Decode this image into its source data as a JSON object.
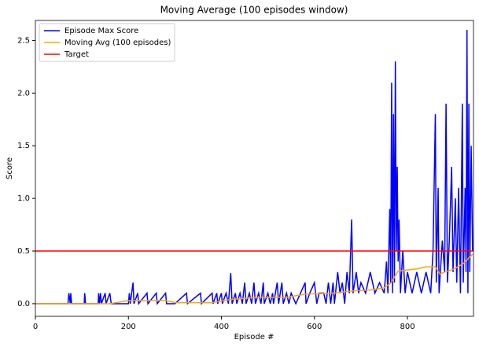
{
  "chart_data": {
    "type": "line",
    "title": "Moving Average (100 episodes window)",
    "x_label": "Episode #",
    "y_label": "Score",
    "xlim": [
      0,
      942
    ],
    "ylim": [
      -0.12,
      2.69
    ],
    "xticks": [
      0,
      200,
      400,
      600,
      800
    ],
    "yticks": [
      {
        "value": 0,
        "label": "0.0"
      },
      {
        "value": 0.5,
        "label": "0.5"
      },
      {
        "value": 1,
        "label": "1.0"
      },
      {
        "value": 1.5,
        "label": "1.5"
      },
      {
        "value": 2,
        "label": "2.0"
      },
      {
        "value": 2.5,
        "label": "2.5"
      }
    ],
    "legend": "upper left",
    "series": [
      {
        "name": "Episode Max Score",
        "color": "#0000ff",
        "x": [
          0,
          70,
          72,
          75,
          76,
          78,
          105,
          106,
          108,
          135,
          136,
          138,
          140,
          142,
          150,
          152,
          160,
          163,
          200,
          202,
          204,
          210,
          212,
          220,
          222,
          240,
          242,
          260,
          262,
          280,
          282,
          300,
          325,
          327,
          355,
          357,
          380,
          382,
          390,
          392,
          400,
          402,
          410,
          415,
          420,
          423,
          430,
          433,
          440,
          445,
          450,
          453,
          460,
          465,
          470,
          473,
          480,
          485,
          490,
          492,
          500,
          505,
          510,
          512,
          520,
          523,
          530,
          533,
          540,
          545,
          550,
          560,
          570,
          580,
          582,
          590,
          600,
          605,
          610,
          620,
          625,
          630,
          635,
          640,
          643,
          650,
          655,
          660,
          665,
          670,
          675,
          680,
          683,
          690,
          695,
          700,
          710,
          720,
          730,
          740,
          750,
          755,
          758,
          762,
          764,
          766,
          768,
          770,
          772,
          774,
          776,
          778,
          780,
          782,
          785,
          790,
          795,
          800,
          810,
          820,
          830,
          840,
          850,
          855,
          860,
          862,
          866,
          868,
          875,
          880,
          883,
          886,
          890,
          895,
          898,
          903,
          906,
          910,
          914,
          918,
          920,
          924,
          926,
          928,
          930,
          932,
          934,
          937,
          940
        ],
        "values": [
          0,
          0,
          0.1,
          0,
          0.1,
          0,
          0,
          0.1,
          0,
          0,
          0.1,
          0,
          0.1,
          0,
          0.1,
          0,
          0.1,
          0,
          0,
          0.1,
          0,
          0.2,
          0,
          0.1,
          0,
          0.1,
          0,
          0.1,
          0,
          0.1,
          0,
          0,
          0.1,
          0,
          0.1,
          0,
          0.1,
          0,
          0.1,
          0,
          0.1,
          0,
          0.1,
          0,
          0.29,
          0,
          0.1,
          0,
          0.1,
          0,
          0.2,
          0,
          0.1,
          0,
          0.2,
          0,
          0.1,
          0,
          0.2,
          0,
          0.1,
          0,
          0.1,
          0,
          0.2,
          0,
          0.2,
          0,
          0.1,
          0,
          0.1,
          0,
          0.1,
          0.2,
          0,
          0.1,
          0.2,
          0,
          0.1,
          0.1,
          0,
          0.2,
          0,
          0.2,
          0,
          0.3,
          0.1,
          0.2,
          0,
          0.3,
          0.1,
          0.8,
          0.1,
          0.3,
          0.1,
          0.2,
          0.1,
          0.3,
          0.1,
          0.2,
          0.1,
          0.4,
          0.1,
          0.9,
          0.2,
          2.1,
          0.1,
          1.8,
          0.2,
          2.3,
          0.5,
          1.3,
          0.4,
          0.8,
          0.1,
          0.5,
          0.1,
          0.3,
          0.1,
          0.3,
          0.1,
          0.3,
          0.1,
          0.5,
          1.8,
          0.2,
          1.1,
          0.1,
          0.6,
          0.3,
          1.9,
          0.2,
          0.6,
          1.3,
          0.3,
          1.0,
          0.2,
          1.1,
          0.1,
          1.9,
          0.2,
          1.1,
          0.3,
          2.6,
          0.1,
          1.9,
          0.3,
          1.5,
          0.5
        ]
      },
      {
        "name": "Moving Avg (100 episodes)",
        "color": "#ffa500",
        "x": [
          0,
          160,
          200,
          280,
          300,
          380,
          420,
          480,
          540,
          580,
          640,
          680,
          720,
          750,
          765,
          780,
          800,
          820,
          840,
          860,
          870,
          880,
          900,
          920,
          940
        ],
        "values": [
          0,
          0,
          0.03,
          0.03,
          0.01,
          0.01,
          0.04,
          0.06,
          0.06,
          0.09,
          0.1,
          0.12,
          0.13,
          0.15,
          0.2,
          0.31,
          0.32,
          0.33,
          0.35,
          0.35,
          0.28,
          0.3,
          0.33,
          0.38,
          0.47
        ]
      },
      {
        "name": "Target",
        "color": "#ff0000",
        "x": [
          0,
          942
        ],
        "values": [
          0.5,
          0.5
        ]
      }
    ]
  }
}
